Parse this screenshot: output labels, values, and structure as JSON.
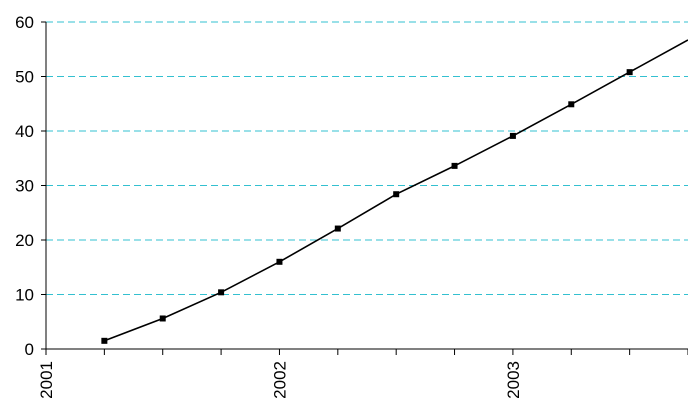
{
  "chart_data": {
    "type": "line",
    "title": "",
    "xlabel": "",
    "ylabel": "",
    "xlim": [
      2001,
      2003.75
    ],
    "ylim": [
      0,
      60
    ],
    "x_tick_labels": [
      {
        "value": 2001,
        "label": "2001"
      },
      {
        "value": 2002,
        "label": "2002"
      },
      {
        "value": 2003,
        "label": "2003"
      }
    ],
    "y_ticks": [
      0,
      10,
      20,
      30,
      40,
      50,
      60
    ],
    "grid": {
      "horizontal": true,
      "style": "dashed",
      "color": "#33c0d0"
    },
    "series": [
      {
        "color": "#000000",
        "marker": "square",
        "x": [
          2001.25,
          2001.5,
          2001.75,
          2002.0,
          2002.25,
          2002.5,
          2002.75,
          2003.0,
          2003.25,
          2003.5
        ],
        "y": [
          1.5,
          5.6,
          10.4,
          16.0,
          22.1,
          28.4,
          33.6,
          39.1,
          44.9,
          50.8
        ]
      }
    ]
  }
}
